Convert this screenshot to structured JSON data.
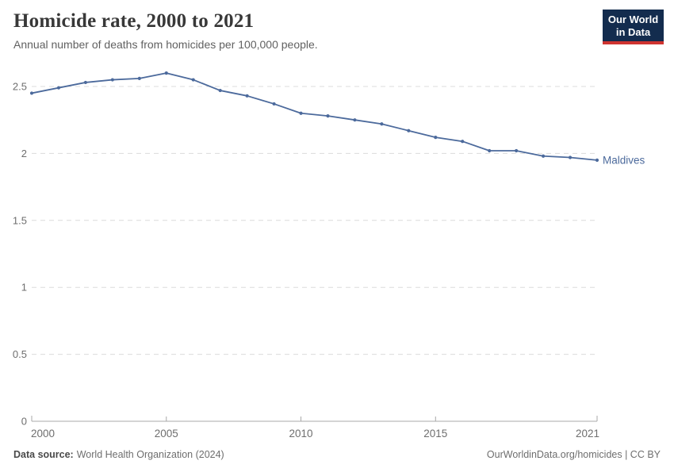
{
  "header": {
    "title": "Homicide rate, 2000 to 2021",
    "subtitle": "Annual number of deaths from homicides per 100,000 people."
  },
  "logo": {
    "line1": "Our World",
    "line2": "in Data"
  },
  "footer": {
    "source_label": "Data source:",
    "source_value": "World Health Organization (2024)",
    "credit": "OurWorldinData.org/homicides | CC BY"
  },
  "colors": {
    "line": "#4c6a9c",
    "grid": "#dcdcdc",
    "axis": "#a8a8a8",
    "tick_text": "#6e6e6e",
    "logo_navy": "#132c4e",
    "logo_red": "#cf3430"
  },
  "chart_data": {
    "type": "line",
    "title": "Homicide rate, 2000 to 2021",
    "xlabel": "",
    "ylabel": "",
    "x": [
      2000,
      2001,
      2002,
      2003,
      2004,
      2005,
      2006,
      2007,
      2008,
      2009,
      2010,
      2011,
      2012,
      2013,
      2014,
      2015,
      2016,
      2017,
      2018,
      2019,
      2020,
      2021
    ],
    "series": [
      {
        "name": "Maldives",
        "color": "#4c6a9c",
        "values": [
          2.45,
          2.49,
          2.53,
          2.55,
          2.56,
          2.6,
          2.55,
          2.47,
          2.43,
          2.37,
          2.3,
          2.28,
          2.25,
          2.22,
          2.17,
          2.12,
          2.09,
          2.02,
          2.02,
          1.98,
          1.97,
          1.95
        ]
      }
    ],
    "xticks": [
      2000,
      2005,
      2010,
      2015,
      2021
    ],
    "yticks": [
      0,
      0.5,
      1,
      1.5,
      2,
      2.5
    ],
    "ylim": [
      0,
      2.5
    ],
    "grid": "horizontal-dashed",
    "legend": "entity-label-right"
  }
}
